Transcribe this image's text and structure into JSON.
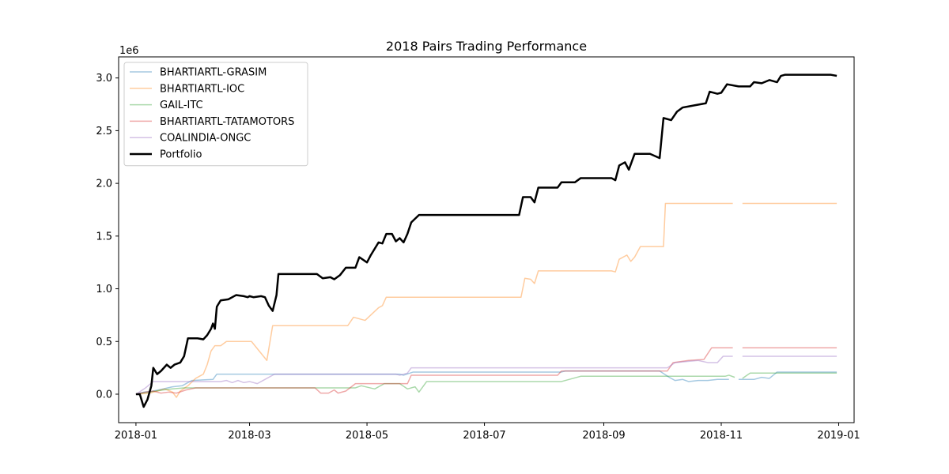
{
  "chart_data": {
    "type": "line",
    "title": "2018 Pairs Trading Performance",
    "xlabel": "",
    "ylabel": "",
    "y_scale_label": "1e6",
    "x_range": [
      "2017-12-23",
      "2019-01-09"
    ],
    "ylim": [
      -0.27,
      3.2
    ],
    "x_ticks": [
      "2018-01",
      "2018-03",
      "2018-05",
      "2018-07",
      "2018-09",
      "2018-11",
      "2019-01"
    ],
    "x_tick_dates": [
      "2018-01-01",
      "2018-03-01",
      "2018-05-01",
      "2018-07-01",
      "2018-09-01",
      "2018-11-01",
      "2019-01-01"
    ],
    "y_ticks": [
      0.0,
      0.5,
      1.0,
      1.5,
      2.0,
      2.5,
      3.0
    ],
    "y_tick_labels": [
      "0.0",
      "0.5",
      "1.0",
      "1.5",
      "2.0",
      "2.5",
      "3.0"
    ],
    "grid": false,
    "legend_position": "top-left",
    "series": [
      {
        "name": "BHARTIARTL-GRASIM",
        "color": "#1f77b4",
        "alpha": 0.4,
        "width": 1.5,
        "points": [
          [
            "2018-01-01",
            0.0
          ],
          [
            "2018-01-05",
            0.02
          ],
          [
            "2018-01-10",
            0.03
          ],
          [
            "2018-01-15",
            0.05
          ],
          [
            "2018-01-20",
            0.07
          ],
          [
            "2018-01-25",
            0.08
          ],
          [
            "2018-01-30",
            0.13
          ],
          [
            "2018-02-10",
            0.14
          ],
          [
            "2018-02-12",
            0.19
          ],
          [
            "2018-05-18",
            0.19
          ],
          [
            "2018-05-20",
            0.18
          ],
          [
            "2018-05-25",
            0.21
          ],
          [
            "2018-08-10",
            0.21
          ],
          [
            "2018-08-12",
            0.22
          ],
          [
            "2018-09-30",
            0.22
          ],
          [
            "2018-10-05",
            0.16
          ],
          [
            "2018-10-08",
            0.13
          ],
          [
            "2018-10-12",
            0.14
          ],
          [
            "2018-10-15",
            0.12
          ],
          [
            "2018-10-20",
            0.13
          ],
          [
            "2018-10-25",
            0.13
          ],
          [
            "2018-10-30",
            0.14
          ],
          [
            "2018-11-05",
            0.14
          ],
          null,
          [
            "2018-11-10",
            0.14
          ],
          [
            "2018-11-18",
            0.14
          ],
          [
            "2018-11-22",
            0.16
          ],
          [
            "2018-11-26",
            0.15
          ],
          [
            "2018-11-30",
            0.21
          ],
          [
            "2018-12-31",
            0.21
          ]
        ]
      },
      {
        "name": "BHARTIARTL-IOC",
        "color": "#ff7f0e",
        "alpha": 0.4,
        "width": 1.5,
        "points": [
          [
            "2018-01-01",
            0.0
          ],
          [
            "2018-01-08",
            0.01
          ],
          [
            "2018-01-12",
            0.03
          ],
          [
            "2018-01-16",
            0.05
          ],
          [
            "2018-01-20",
            0.02
          ],
          [
            "2018-01-22",
            -0.03
          ],
          [
            "2018-01-24",
            0.03
          ],
          [
            "2018-01-28",
            0.08
          ],
          [
            "2018-02-01",
            0.15
          ],
          [
            "2018-02-05",
            0.19
          ],
          [
            "2018-02-07",
            0.28
          ],
          [
            "2018-02-09",
            0.41
          ],
          [
            "2018-02-11",
            0.46
          ],
          [
            "2018-02-14",
            0.46
          ],
          [
            "2018-02-17",
            0.5
          ],
          [
            "2018-03-02",
            0.5
          ],
          [
            "2018-03-10",
            0.32
          ],
          [
            "2018-03-13",
            0.65
          ],
          [
            "2018-04-21",
            0.65
          ],
          [
            "2018-04-24",
            0.73
          ],
          [
            "2018-04-30",
            0.7
          ],
          [
            "2018-05-07",
            0.82
          ],
          [
            "2018-05-09",
            0.84
          ],
          [
            "2018-05-11",
            0.92
          ],
          [
            "2018-07-20",
            0.92
          ],
          [
            "2018-07-22",
            1.1
          ],
          [
            "2018-07-25",
            1.09
          ],
          [
            "2018-07-27",
            1.05
          ],
          [
            "2018-07-29",
            1.17
          ],
          [
            "2018-09-05",
            1.17
          ],
          [
            "2018-09-07",
            1.16
          ],
          [
            "2018-09-09",
            1.28
          ],
          [
            "2018-09-13",
            1.32
          ],
          [
            "2018-09-15",
            1.26
          ],
          [
            "2018-09-17",
            1.3
          ],
          [
            "2018-09-20",
            1.4
          ],
          [
            "2018-10-02",
            1.4
          ],
          [
            "2018-10-03",
            1.81
          ],
          [
            "2018-11-07",
            1.81
          ],
          null,
          [
            "2018-11-12",
            1.81
          ],
          [
            "2018-12-31",
            1.81
          ]
        ]
      },
      {
        "name": "GAIL-ITC",
        "color": "#2ca02c",
        "alpha": 0.4,
        "width": 1.5,
        "points": [
          [
            "2018-01-01",
            0.0
          ],
          [
            "2018-01-08",
            0.02
          ],
          [
            "2018-01-15",
            0.04
          ],
          [
            "2018-01-20",
            0.05
          ],
          [
            "2018-01-26",
            0.06
          ],
          [
            "2018-04-25",
            0.06
          ],
          [
            "2018-04-28",
            0.08
          ],
          [
            "2018-05-05",
            0.05
          ],
          [
            "2018-05-10",
            0.1
          ],
          [
            "2018-05-18",
            0.1
          ],
          [
            "2018-05-22",
            0.05
          ],
          [
            "2018-05-26",
            0.07
          ],
          [
            "2018-05-28",
            0.02
          ],
          [
            "2018-06-01",
            0.12
          ],
          [
            "2018-08-10",
            0.12
          ],
          [
            "2018-08-20",
            0.17
          ],
          [
            "2018-11-03",
            0.17
          ],
          [
            "2018-11-05",
            0.18
          ],
          [
            "2018-11-08",
            0.16
          ],
          null,
          [
            "2018-11-12",
            0.15
          ],
          [
            "2018-11-16",
            0.2
          ],
          [
            "2018-12-31",
            0.2
          ]
        ]
      },
      {
        "name": "BHARTIARTL-TATAMOTORS",
        "color": "#d62728",
        "alpha": 0.4,
        "width": 1.5,
        "points": [
          [
            "2018-01-01",
            0.0
          ],
          [
            "2018-01-06",
            0.02
          ],
          [
            "2018-01-10",
            0.03
          ],
          [
            "2018-01-14",
            0.01
          ],
          [
            "2018-01-18",
            0.02
          ],
          [
            "2018-01-22",
            0.01
          ],
          [
            "2018-01-27",
            0.04
          ],
          [
            "2018-02-01",
            0.06
          ],
          [
            "2018-04-04",
            0.06
          ],
          [
            "2018-04-07",
            0.01
          ],
          [
            "2018-04-11",
            0.01
          ],
          [
            "2018-04-14",
            0.04
          ],
          [
            "2018-04-16",
            0.01
          ],
          [
            "2018-04-20",
            0.03
          ],
          [
            "2018-04-25",
            0.1
          ],
          [
            "2018-05-22",
            0.1
          ],
          [
            "2018-05-24",
            0.18
          ],
          [
            "2018-08-08",
            0.18
          ],
          [
            "2018-08-10",
            0.22
          ],
          [
            "2018-10-04",
            0.22
          ],
          [
            "2018-10-07",
            0.3
          ],
          [
            "2018-10-15",
            0.32
          ],
          [
            "2018-10-23",
            0.33
          ],
          [
            "2018-10-27",
            0.44
          ],
          [
            "2018-11-07",
            0.44
          ],
          null,
          [
            "2018-11-12",
            0.44
          ],
          [
            "2018-12-31",
            0.44
          ]
        ]
      },
      {
        "name": "COALINDIA-ONGC",
        "color": "#9467bd",
        "alpha": 0.4,
        "width": 1.5,
        "points": [
          [
            "2018-01-01",
            0.0
          ],
          [
            "2018-01-06",
            0.06
          ],
          [
            "2018-01-10",
            0.12
          ],
          [
            "2018-02-14",
            0.12
          ],
          [
            "2018-02-17",
            0.13
          ],
          [
            "2018-02-20",
            0.11
          ],
          [
            "2018-02-23",
            0.13
          ],
          [
            "2018-02-26",
            0.11
          ],
          [
            "2018-03-01",
            0.12
          ],
          [
            "2018-03-05",
            0.1
          ],
          [
            "2018-03-10",
            0.15
          ],
          [
            "2018-03-14",
            0.19
          ],
          [
            "2018-05-16",
            0.19
          ],
          [
            "2018-05-18",
            0.18
          ],
          [
            "2018-05-22",
            0.2
          ],
          [
            "2018-05-24",
            0.25
          ],
          [
            "2018-10-04",
            0.25
          ],
          [
            "2018-10-08",
            0.3
          ],
          [
            "2018-10-20",
            0.32
          ],
          [
            "2018-10-25",
            0.3
          ],
          [
            "2018-10-30",
            0.3
          ],
          [
            "2018-11-02",
            0.36
          ],
          [
            "2018-11-07",
            0.36
          ],
          null,
          [
            "2018-11-12",
            0.36
          ],
          [
            "2018-12-31",
            0.36
          ]
        ]
      },
      {
        "name": "Portfolio",
        "color": "#000000",
        "alpha": 1.0,
        "width": 2.5,
        "points": [
          [
            "2018-01-01",
            0.0
          ],
          [
            "2018-01-03",
            0.0
          ],
          [
            "2018-01-05",
            -0.12
          ],
          [
            "2018-01-07",
            -0.05
          ],
          [
            "2018-01-09",
            0.08
          ],
          [
            "2018-01-10",
            0.25
          ],
          [
            "2018-01-12",
            0.19
          ],
          [
            "2018-01-14",
            0.22
          ],
          [
            "2018-01-17",
            0.28
          ],
          [
            "2018-01-19",
            0.25
          ],
          [
            "2018-01-21",
            0.28
          ],
          [
            "2018-01-24",
            0.3
          ],
          [
            "2018-01-26",
            0.36
          ],
          [
            "2018-01-28",
            0.53
          ],
          [
            "2018-02-02",
            0.53
          ],
          [
            "2018-02-05",
            0.52
          ],
          [
            "2018-02-07",
            0.56
          ],
          [
            "2018-02-09",
            0.62
          ],
          [
            "2018-02-10",
            0.67
          ],
          [
            "2018-02-11",
            0.62
          ],
          [
            "2018-02-12",
            0.83
          ],
          [
            "2018-02-14",
            0.89
          ],
          [
            "2018-02-18",
            0.9
          ],
          [
            "2018-02-22",
            0.94
          ],
          [
            "2018-02-26",
            0.93
          ],
          [
            "2018-02-28",
            0.92
          ],
          [
            "2018-03-01",
            0.93
          ],
          [
            "2018-03-03",
            0.92
          ],
          [
            "2018-03-07",
            0.93
          ],
          [
            "2018-03-09",
            0.92
          ],
          [
            "2018-03-11",
            0.84
          ],
          [
            "2018-03-13",
            0.79
          ],
          [
            "2018-03-15",
            0.94
          ],
          [
            "2018-03-16",
            1.14
          ],
          [
            "2018-04-05",
            1.14
          ],
          [
            "2018-04-08",
            1.1
          ],
          [
            "2018-04-12",
            1.11
          ],
          [
            "2018-04-14",
            1.09
          ],
          [
            "2018-04-17",
            1.13
          ],
          [
            "2018-04-20",
            1.2
          ],
          [
            "2018-04-25",
            1.2
          ],
          [
            "2018-04-27",
            1.3
          ],
          [
            "2018-05-01",
            1.25
          ],
          [
            "2018-05-03",
            1.32
          ],
          [
            "2018-05-07",
            1.44
          ],
          [
            "2018-05-09",
            1.43
          ],
          [
            "2018-05-11",
            1.52
          ],
          [
            "2018-05-14",
            1.52
          ],
          [
            "2018-05-16",
            1.45
          ],
          [
            "2018-05-18",
            1.48
          ],
          [
            "2018-05-20",
            1.44
          ],
          [
            "2018-05-22",
            1.52
          ],
          [
            "2018-05-24",
            1.63
          ],
          [
            "2018-05-28",
            1.7
          ],
          [
            "2018-07-19",
            1.7
          ],
          [
            "2018-07-21",
            1.87
          ],
          [
            "2018-07-25",
            1.87
          ],
          [
            "2018-07-27",
            1.82
          ],
          [
            "2018-07-29",
            1.96
          ],
          [
            "2018-08-08",
            1.96
          ],
          [
            "2018-08-10",
            2.01
          ],
          [
            "2018-08-17",
            2.01
          ],
          [
            "2018-08-20",
            2.05
          ],
          [
            "2018-09-05",
            2.05
          ],
          [
            "2018-09-07",
            2.03
          ],
          [
            "2018-09-09",
            2.17
          ],
          [
            "2018-09-12",
            2.2
          ],
          [
            "2018-09-14",
            2.13
          ],
          [
            "2018-09-17",
            2.28
          ],
          [
            "2018-09-25",
            2.28
          ],
          [
            "2018-09-30",
            2.24
          ],
          [
            "2018-10-02",
            2.62
          ],
          [
            "2018-10-06",
            2.6
          ],
          [
            "2018-10-09",
            2.68
          ],
          [
            "2018-10-12",
            2.72
          ],
          [
            "2018-10-15",
            2.73
          ],
          [
            "2018-10-18",
            2.74
          ],
          [
            "2018-10-24",
            2.76
          ],
          [
            "2018-10-26",
            2.87
          ],
          [
            "2018-10-30",
            2.85
          ],
          [
            "2018-11-01",
            2.86
          ],
          [
            "2018-11-04",
            2.94
          ],
          [
            "2018-11-10",
            2.92
          ],
          [
            "2018-11-16",
            2.92
          ],
          [
            "2018-11-18",
            2.96
          ],
          [
            "2018-11-22",
            2.95
          ],
          [
            "2018-11-26",
            2.98
          ],
          [
            "2018-11-30",
            2.96
          ],
          [
            "2018-12-02",
            3.02
          ],
          [
            "2018-12-04",
            3.03
          ],
          [
            "2018-12-28",
            3.03
          ],
          [
            "2018-12-31",
            3.02
          ]
        ]
      }
    ]
  }
}
